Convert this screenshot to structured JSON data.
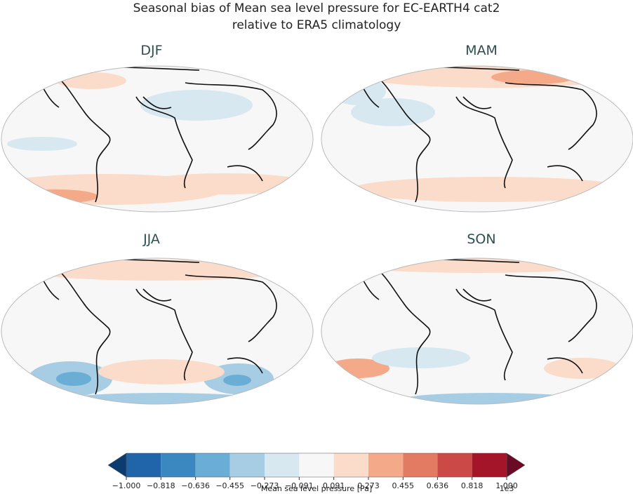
{
  "title": [
    "Seasonal bias of Mean sea level pressure for EC-EARTH4 cat2",
    "relative to ERA5 climatology"
  ],
  "panels": [
    {
      "title": "DJF"
    },
    {
      "title": "MAM"
    },
    {
      "title": "JJA"
    },
    {
      "title": "SON"
    }
  ],
  "colorbar": {
    "label": "Mean sea level pressure [Pa]",
    "offset_label": "1e3",
    "lim": [
      -1,
      1
    ],
    "ticks": [
      {
        "value": -1,
        "label": "−1.000"
      },
      {
        "value": -0.818,
        "label": "−0.818"
      },
      {
        "value": -0.636,
        "label": "−0.636"
      },
      {
        "value": -0.455,
        "label": "−0.455"
      },
      {
        "value": -0.273,
        "label": "−0.273"
      },
      {
        "value": -0.091,
        "label": "−0.091"
      },
      {
        "value": 0.091,
        "label": "0.091"
      },
      {
        "value": 0.273,
        "label": "0.273"
      },
      {
        "value": 0.455,
        "label": "0.455"
      },
      {
        "value": 0.636,
        "label": "0.636"
      },
      {
        "value": 0.818,
        "label": "0.818"
      },
      {
        "value": 1,
        "label": "1.000"
      }
    ],
    "colors": [
      "#2064aa",
      "#3b88c0",
      "#6aaed6",
      "#a6cde3",
      "#d7e8f1",
      "#f7f7f7",
      "#fbdbc9",
      "#f4aa89",
      "#e27b62",
      "#cb4a47",
      "#a51529"
    ],
    "under_color": "#0c3b70",
    "over_color": "#6b0a25"
  }
}
